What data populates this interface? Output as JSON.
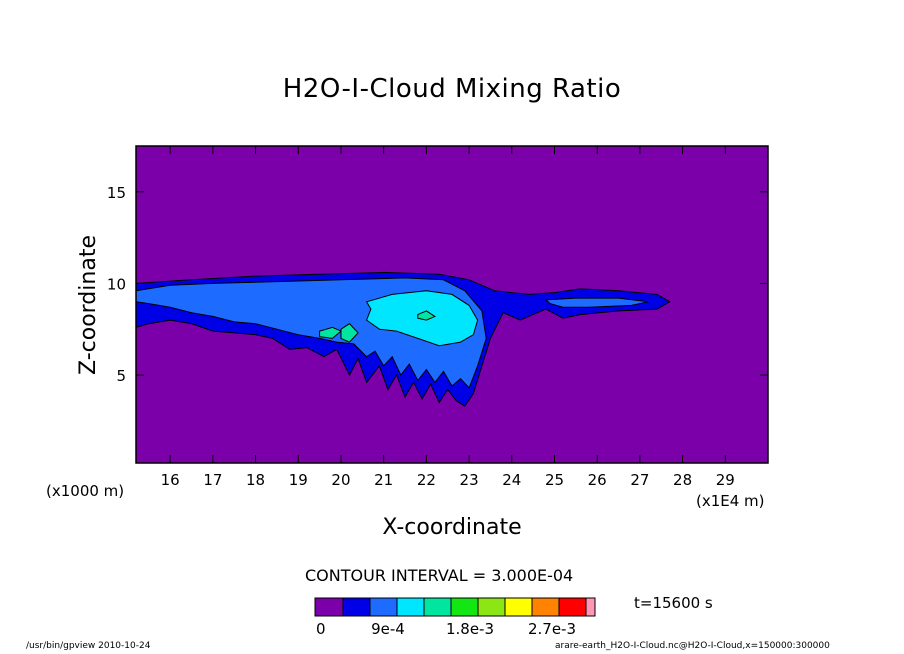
{
  "chart_data": {
    "type": "contour",
    "title": "H2O-I-Cloud Mixing Ratio",
    "xlabel": "X-coordinate",
    "ylabel": "Z-coordinate",
    "x_unit_left": "(x1000 m)",
    "x_unit_right": "(x1E4 m)",
    "xlim": [
      15.2,
      30.0
    ],
    "ylim": [
      0.2,
      17.5
    ],
    "x_ticks": [
      "16",
      "17",
      "18",
      "19",
      "20",
      "21",
      "22",
      "23",
      "24",
      "25",
      "26",
      "27",
      "28",
      "29"
    ],
    "y_ticks": [
      "5",
      "10",
      "15"
    ],
    "contour_interval_text": "CONTOUR INTERVAL = 3.000E-04",
    "time_text": "t=15600 s",
    "colorbar": {
      "colors": [
        "#7b00aa",
        "#0000e6",
        "#1e6bff",
        "#00e6ff",
        "#00e6a0",
        "#14e614",
        "#8ce614",
        "#ffff00",
        "#ff8200",
        "#ff0000",
        "#ff96b4"
      ],
      "labels": [
        "0",
        "9e-4",
        "1.8e-3",
        "2.7e-3"
      ]
    },
    "levels": [
      {
        "name": "level-0",
        "value": 0,
        "color": "#7b00aa"
      },
      {
        "name": "level-1",
        "value": 0.0003,
        "color": "#0000e6"
      },
      {
        "name": "level-2",
        "value": 0.0006,
        "color": "#1e6bff"
      },
      {
        "name": "level-3",
        "value": 0.0009,
        "color": "#00e6ff"
      },
      {
        "name": "level-4",
        "value": 0.0012,
        "color": "#00e6a0"
      }
    ],
    "regions": [
      {
        "level": 1,
        "points": [
          [
            15.2,
            10.0
          ],
          [
            16.5,
            10.2
          ],
          [
            18,
            10.4
          ],
          [
            19.5,
            10.5
          ],
          [
            21,
            10.6
          ],
          [
            22.3,
            10.5
          ],
          [
            23.0,
            10.2
          ],
          [
            23.6,
            9.6
          ],
          [
            24.4,
            9.4
          ],
          [
            25.0,
            9.5
          ],
          [
            25.6,
            9.7
          ],
          [
            26.5,
            9.6
          ],
          [
            27.4,
            9.4
          ],
          [
            27.7,
            9.0
          ],
          [
            27.4,
            8.6
          ],
          [
            26.5,
            8.5
          ],
          [
            25.6,
            8.3
          ],
          [
            25.2,
            8.1
          ],
          [
            24.8,
            8.6
          ],
          [
            24.5,
            8.3
          ],
          [
            24.2,
            8.0
          ],
          [
            23.8,
            8.4
          ],
          [
            23.5,
            7.0
          ],
          [
            23.3,
            5.5
          ],
          [
            23.1,
            4.0
          ],
          [
            22.9,
            3.3
          ],
          [
            22.7,
            3.6
          ],
          [
            22.5,
            4.2
          ],
          [
            22.3,
            3.5
          ],
          [
            22.1,
            4.5
          ],
          [
            21.9,
            3.7
          ],
          [
            21.7,
            4.6
          ],
          [
            21.5,
            3.8
          ],
          [
            21.3,
            5.0
          ],
          [
            21.1,
            4.2
          ],
          [
            20.9,
            5.5
          ],
          [
            20.6,
            4.6
          ],
          [
            20.4,
            5.9
          ],
          [
            20.2,
            5.0
          ],
          [
            19.9,
            6.4
          ],
          [
            19.6,
            6.0
          ],
          [
            19.2,
            6.5
          ],
          [
            18.8,
            6.4
          ],
          [
            18.4,
            7.0
          ],
          [
            18.0,
            7.2
          ],
          [
            17.5,
            7.3
          ],
          [
            17.0,
            7.4
          ],
          [
            16.5,
            7.8
          ],
          [
            16.0,
            8.0
          ],
          [
            15.5,
            7.8
          ],
          [
            15.2,
            7.6
          ]
        ]
      },
      {
        "level": 2,
        "points": [
          [
            15.2,
            9.6
          ],
          [
            16.0,
            9.9
          ],
          [
            17.0,
            10.0
          ],
          [
            18.5,
            10.1
          ],
          [
            20.0,
            10.2
          ],
          [
            21.5,
            10.3
          ],
          [
            22.4,
            10.2
          ],
          [
            22.9,
            9.6
          ],
          [
            23.3,
            8.5
          ],
          [
            23.4,
            7.0
          ],
          [
            23.2,
            5.5
          ],
          [
            23.0,
            4.3
          ],
          [
            22.8,
            4.8
          ],
          [
            22.6,
            4.4
          ],
          [
            22.4,
            5.2
          ],
          [
            22.2,
            4.6
          ],
          [
            22.0,
            5.3
          ],
          [
            21.8,
            4.7
          ],
          [
            21.6,
            5.6
          ],
          [
            21.4,
            5.0
          ],
          [
            21.2,
            6.0
          ],
          [
            21.0,
            5.5
          ],
          [
            20.8,
            6.3
          ],
          [
            20.6,
            6.0
          ],
          [
            20.3,
            6.7
          ],
          [
            19.9,
            6.8
          ],
          [
            19.5,
            7.0
          ],
          [
            19.0,
            7.2
          ],
          [
            18.5,
            7.5
          ],
          [
            18.0,
            7.8
          ],
          [
            17.5,
            7.9
          ],
          [
            17.0,
            8.2
          ],
          [
            16.5,
            8.4
          ],
          [
            16.0,
            8.7
          ],
          [
            15.5,
            8.9
          ],
          [
            15.2,
            9.0
          ]
        ]
      },
      {
        "level": 2,
        "points": [
          [
            24.8,
            9.1
          ],
          [
            25.5,
            9.2
          ],
          [
            26.5,
            9.2
          ],
          [
            27.2,
            9.0
          ],
          [
            26.8,
            8.8
          ],
          [
            25.8,
            8.7
          ],
          [
            25.2,
            8.7
          ],
          [
            24.9,
            8.9
          ]
        ]
      },
      {
        "level": 3,
        "points": [
          [
            20.6,
            9.0
          ],
          [
            21.2,
            9.4
          ],
          [
            22.0,
            9.6
          ],
          [
            22.6,
            9.4
          ],
          [
            23.0,
            8.8
          ],
          [
            23.2,
            8.0
          ],
          [
            23.1,
            7.2
          ],
          [
            22.8,
            6.8
          ],
          [
            22.3,
            6.6
          ],
          [
            21.8,
            7.0
          ],
          [
            21.3,
            7.4
          ],
          [
            20.9,
            7.5
          ],
          [
            20.6,
            8.0
          ],
          [
            20.7,
            8.6
          ]
        ]
      },
      {
        "level": 4,
        "points": [
          [
            19.5,
            7.4
          ],
          [
            19.8,
            7.6
          ],
          [
            20.0,
            7.4
          ],
          [
            19.8,
            7.0
          ],
          [
            19.5,
            7.1
          ]
        ]
      },
      {
        "level": 4,
        "points": [
          [
            20.0,
            7.5
          ],
          [
            20.2,
            7.8
          ],
          [
            20.4,
            7.3
          ],
          [
            20.2,
            6.8
          ],
          [
            20.0,
            7.0
          ]
        ]
      },
      {
        "level": 4,
        "points": [
          [
            21.8,
            8.3
          ],
          [
            22.0,
            8.5
          ],
          [
            22.2,
            8.2
          ],
          [
            22.0,
            8.0
          ],
          [
            21.8,
            8.1
          ]
        ]
      }
    ]
  },
  "footer": {
    "left": "/usr/bin/gpview  2010-10-24",
    "right": "arare-earth_H2O-I-Cloud.nc@H2O-I-Cloud,x=150000:300000"
  }
}
